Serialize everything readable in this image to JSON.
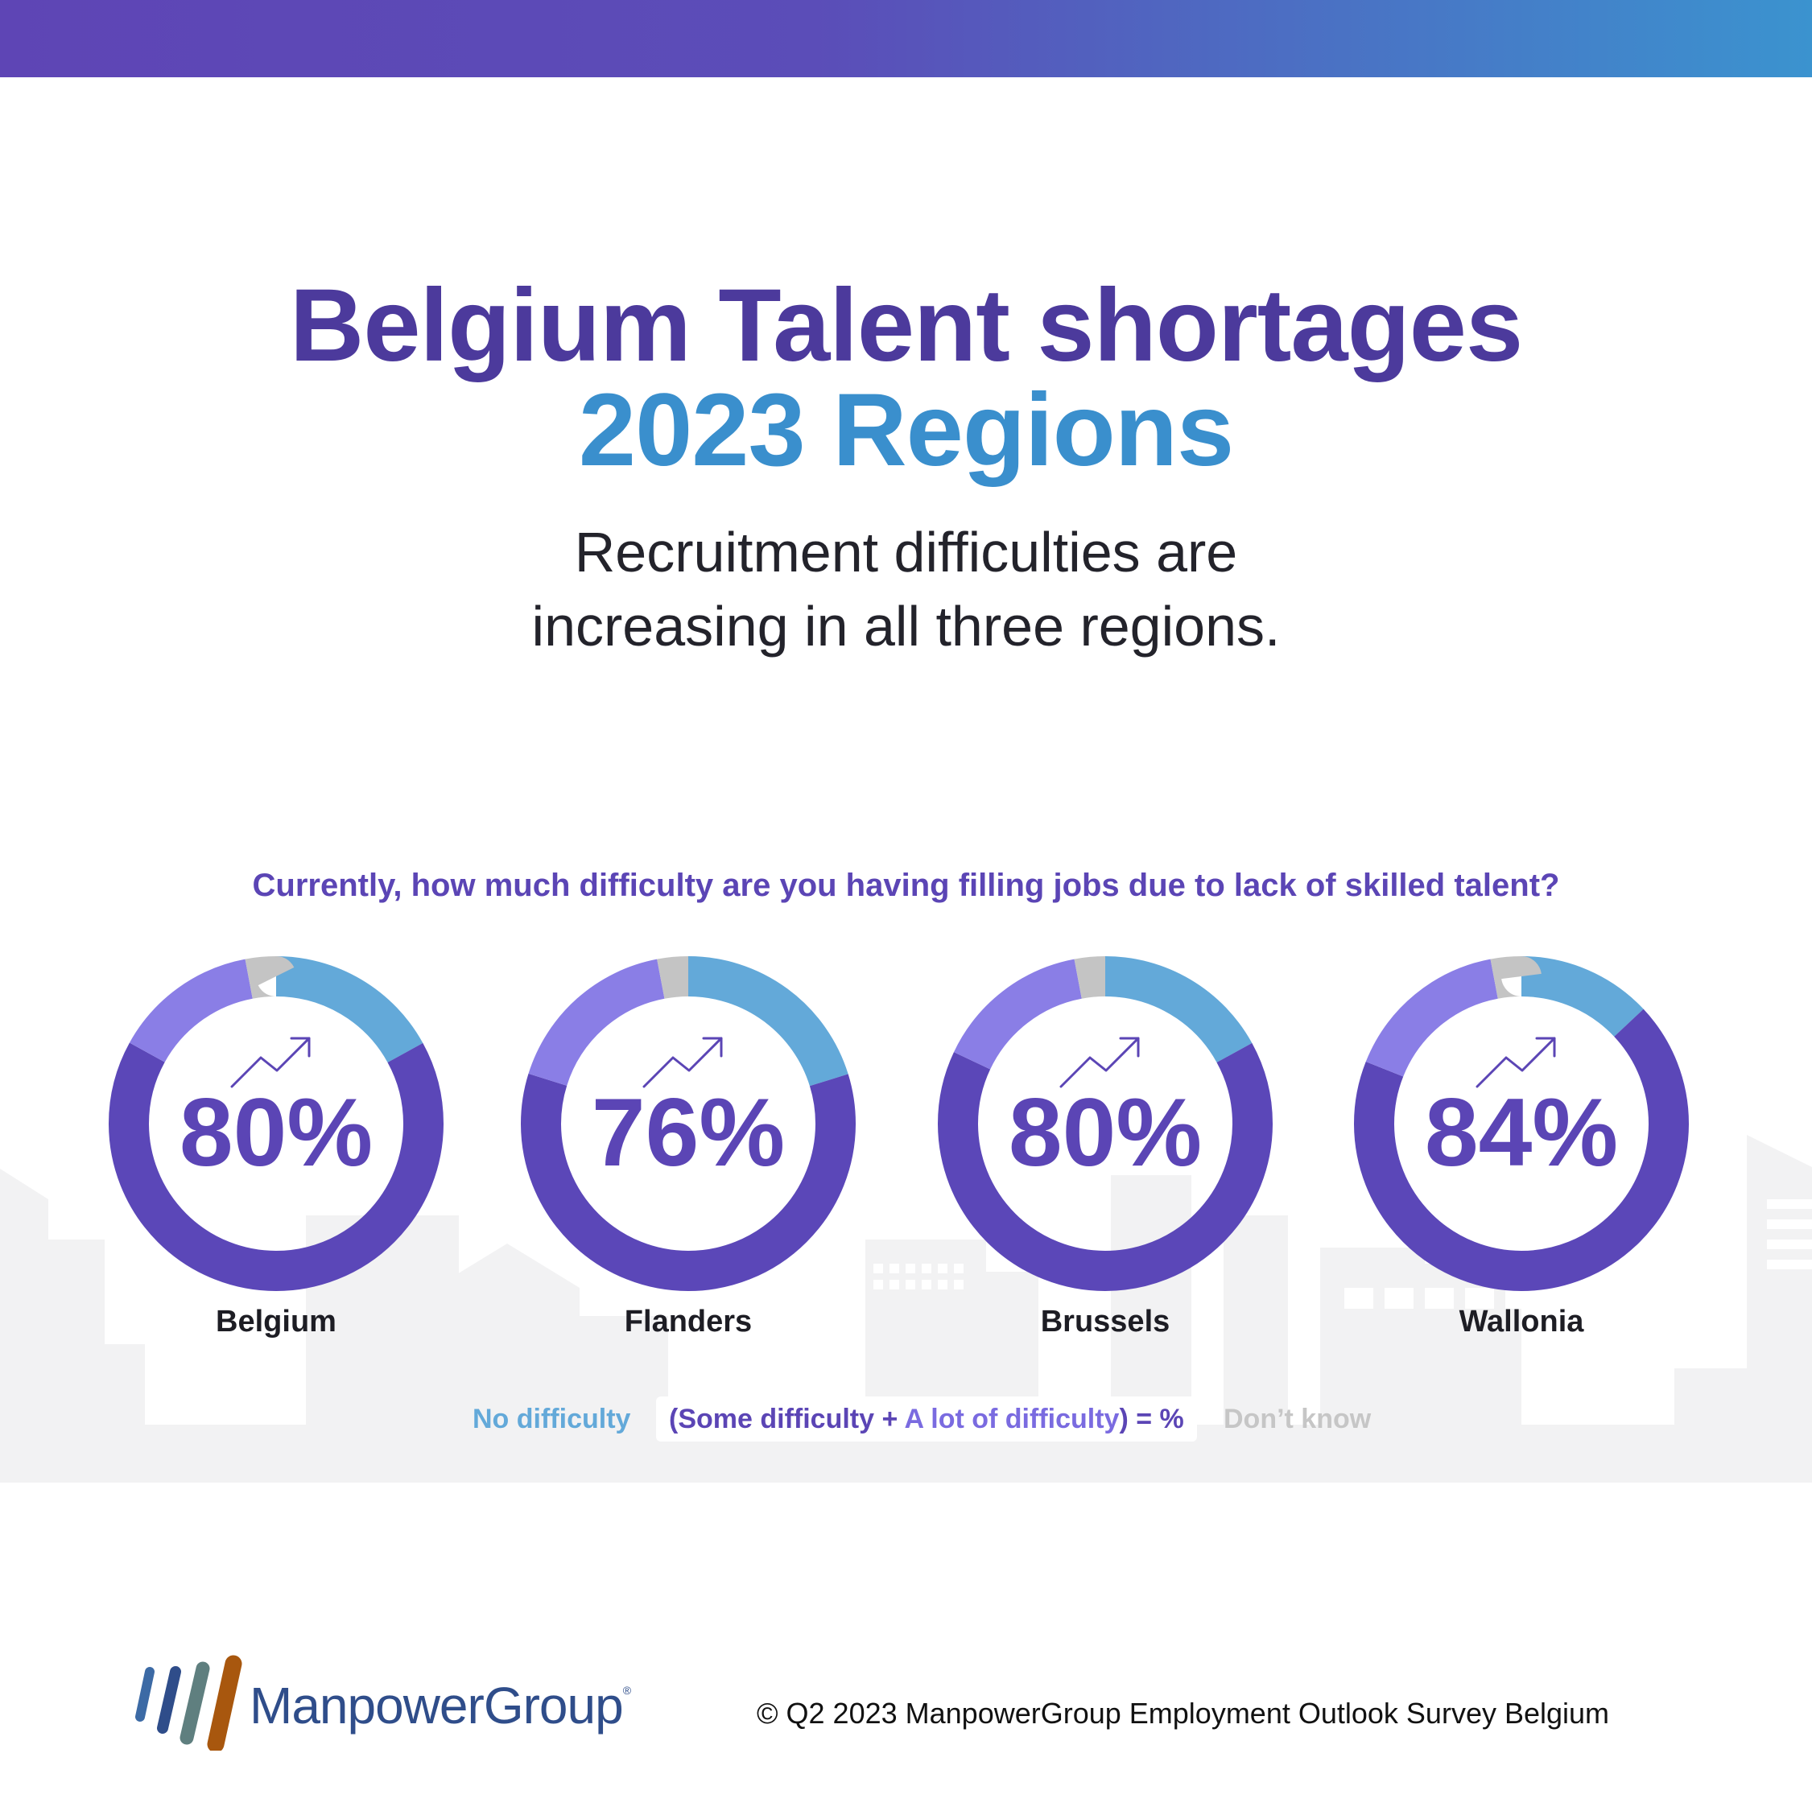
{
  "header": {
    "title_line1": "Belgium Talent shortages",
    "title_line2": "2023 Regions",
    "subtitle_line1": "Recruitment difficulties are",
    "subtitle_line2": "increasing in all three regions."
  },
  "chart_data": {
    "type": "pie",
    "question": "Currently, how much difficulty are you having filling jobs due to lack of skilled talent?",
    "variant": "donut",
    "segments": [
      "No difficulty",
      "Some difficulty",
      "A lot of difficulty",
      "Don’t know"
    ],
    "colors": {
      "No difficulty": "#63a9d9",
      "Some difficulty": "#8a7ee6",
      "A lot of difficulty": "#5b47b8",
      "Don’t know": "#c4c4c4"
    },
    "regions": [
      {
        "name": "Belgium",
        "label": "80%",
        "total": 80,
        "no_difficulty": 17,
        "some_difficulty": 14,
        "a_lot": 66,
        "dont_know": 3
      },
      {
        "name": "Flanders",
        "label": "76%",
        "total": 76,
        "no_difficulty": 20,
        "some_difficulty": 17,
        "a_lot": 59,
        "dont_know": 3
      },
      {
        "name": "Brussels",
        "label": "80%",
        "total": 80,
        "no_difficulty": 17,
        "some_difficulty": 15,
        "a_lot": 65,
        "dont_know": 3
      },
      {
        "name": "Wallonia",
        "label": "84%",
        "total": 84,
        "no_difficulty": 13,
        "some_difficulty": 16,
        "a_lot": 68,
        "dont_know": 3
      }
    ],
    "trend_icon": "trend-up-arrow-icon"
  },
  "legend": {
    "no_difficulty": "No difficulty",
    "some_open": "(Some difficulty",
    "plus": " + ",
    "a_lot": "A lot of difficulty",
    "close": ") = %",
    "dont_know": "Don’t know"
  },
  "footer": {
    "logo_text": "ManpowerGroup",
    "logo_mark": "®",
    "copyright": "© Q2 2023 ManpowerGroup Employment Outlook Survey Belgium"
  }
}
